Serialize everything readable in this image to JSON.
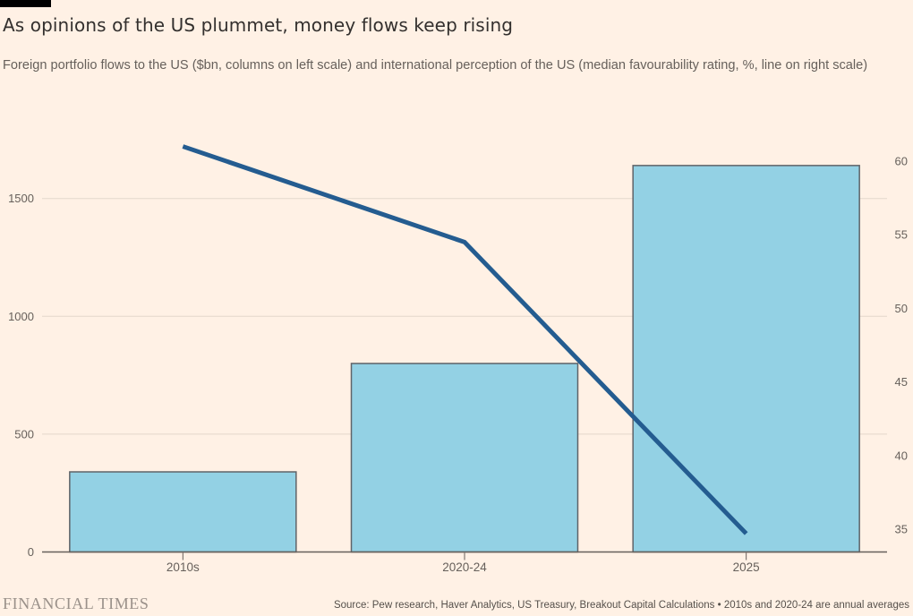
{
  "page": {
    "background": "#FFF1E5",
    "top_marker_color": "#000000"
  },
  "header": {
    "title": "As opinions of the US plummet, money flows keep rising",
    "subtitle": "Foreign portfolio flows to the US ($bn, columns on left scale) and international perception of the US (median favourability rating, %, line on right scale)"
  },
  "footer": {
    "brand": "FINANCIAL TIMES",
    "source": "Source: Pew research, Haver Analytics, US Treasury, Breakout Capital Calculations • 2010s and 2020-24 are annual averages"
  },
  "chart_data": {
    "type": "combo",
    "categories": [
      "2010s",
      "2020-24",
      "2025"
    ],
    "series": [
      {
        "name": "Foreign portfolio flows to the US ($bn)",
        "type": "bar",
        "axis": "left",
        "values": [
          340,
          800,
          1640
        ],
        "fill": "#93D1E4",
        "stroke": "#5F6368"
      },
      {
        "name": "International perception of the US (median favourability rating, %)",
        "type": "line",
        "axis": "right",
        "values": [
          61,
          54.5,
          34.7
        ],
        "color": "#245C90"
      }
    ],
    "left_axis": {
      "ticks": [
        0,
        500,
        1000,
        1500
      ],
      "min": 0,
      "max": 1800
    },
    "right_axis": {
      "ticks": [
        35,
        40,
        45,
        50,
        55,
        60
      ],
      "min": 35,
      "max": 60
    },
    "grid": true,
    "legend": "none",
    "colors": {
      "grid": "#E4D7CB",
      "axis_line": "#66605B",
      "tick_text": "#66605B"
    }
  }
}
